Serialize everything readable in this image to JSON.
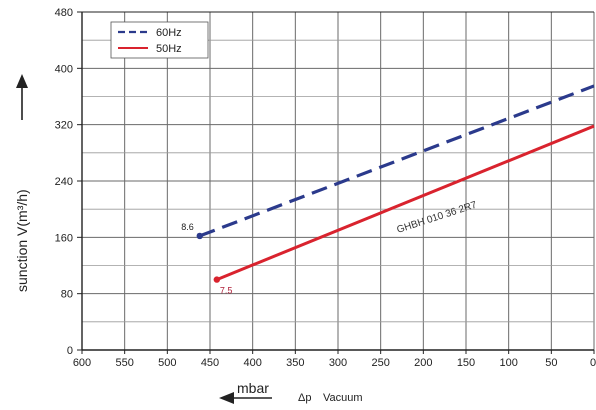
{
  "chart_data": {
    "type": "line",
    "ylabel": "sunction V(m³/h)",
    "xlabel_unit": "mbar",
    "xlabel_symbol": "Δp",
    "xlabel_desc": "Vacuum",
    "xlim": [
      600,
      0
    ],
    "ylim": [
      0,
      480
    ],
    "xticks": [
      600,
      550,
      500,
      450,
      400,
      350,
      300,
      250,
      200,
      150,
      100,
      50,
      0
    ],
    "yticks": [
      0,
      80,
      160,
      240,
      320,
      400,
      480
    ],
    "grid": true,
    "legend_position": "top-left",
    "model_label": "GHBH 010 36 2R7",
    "series": [
      {
        "name": "60Hz",
        "color": "#2b3a8c",
        "line_style": "dashed",
        "x": [
          462,
          0
        ],
        "y": [
          162,
          375
        ],
        "start_label": "8.6",
        "start_label_color": "#222222"
      },
      {
        "name": "50Hz",
        "color": "#d9232e",
        "line_style": "solid",
        "x": [
          442,
          0
        ],
        "y": [
          100,
          318
        ],
        "start_label": "7.5",
        "start_label_color": "#b0203a"
      }
    ]
  }
}
